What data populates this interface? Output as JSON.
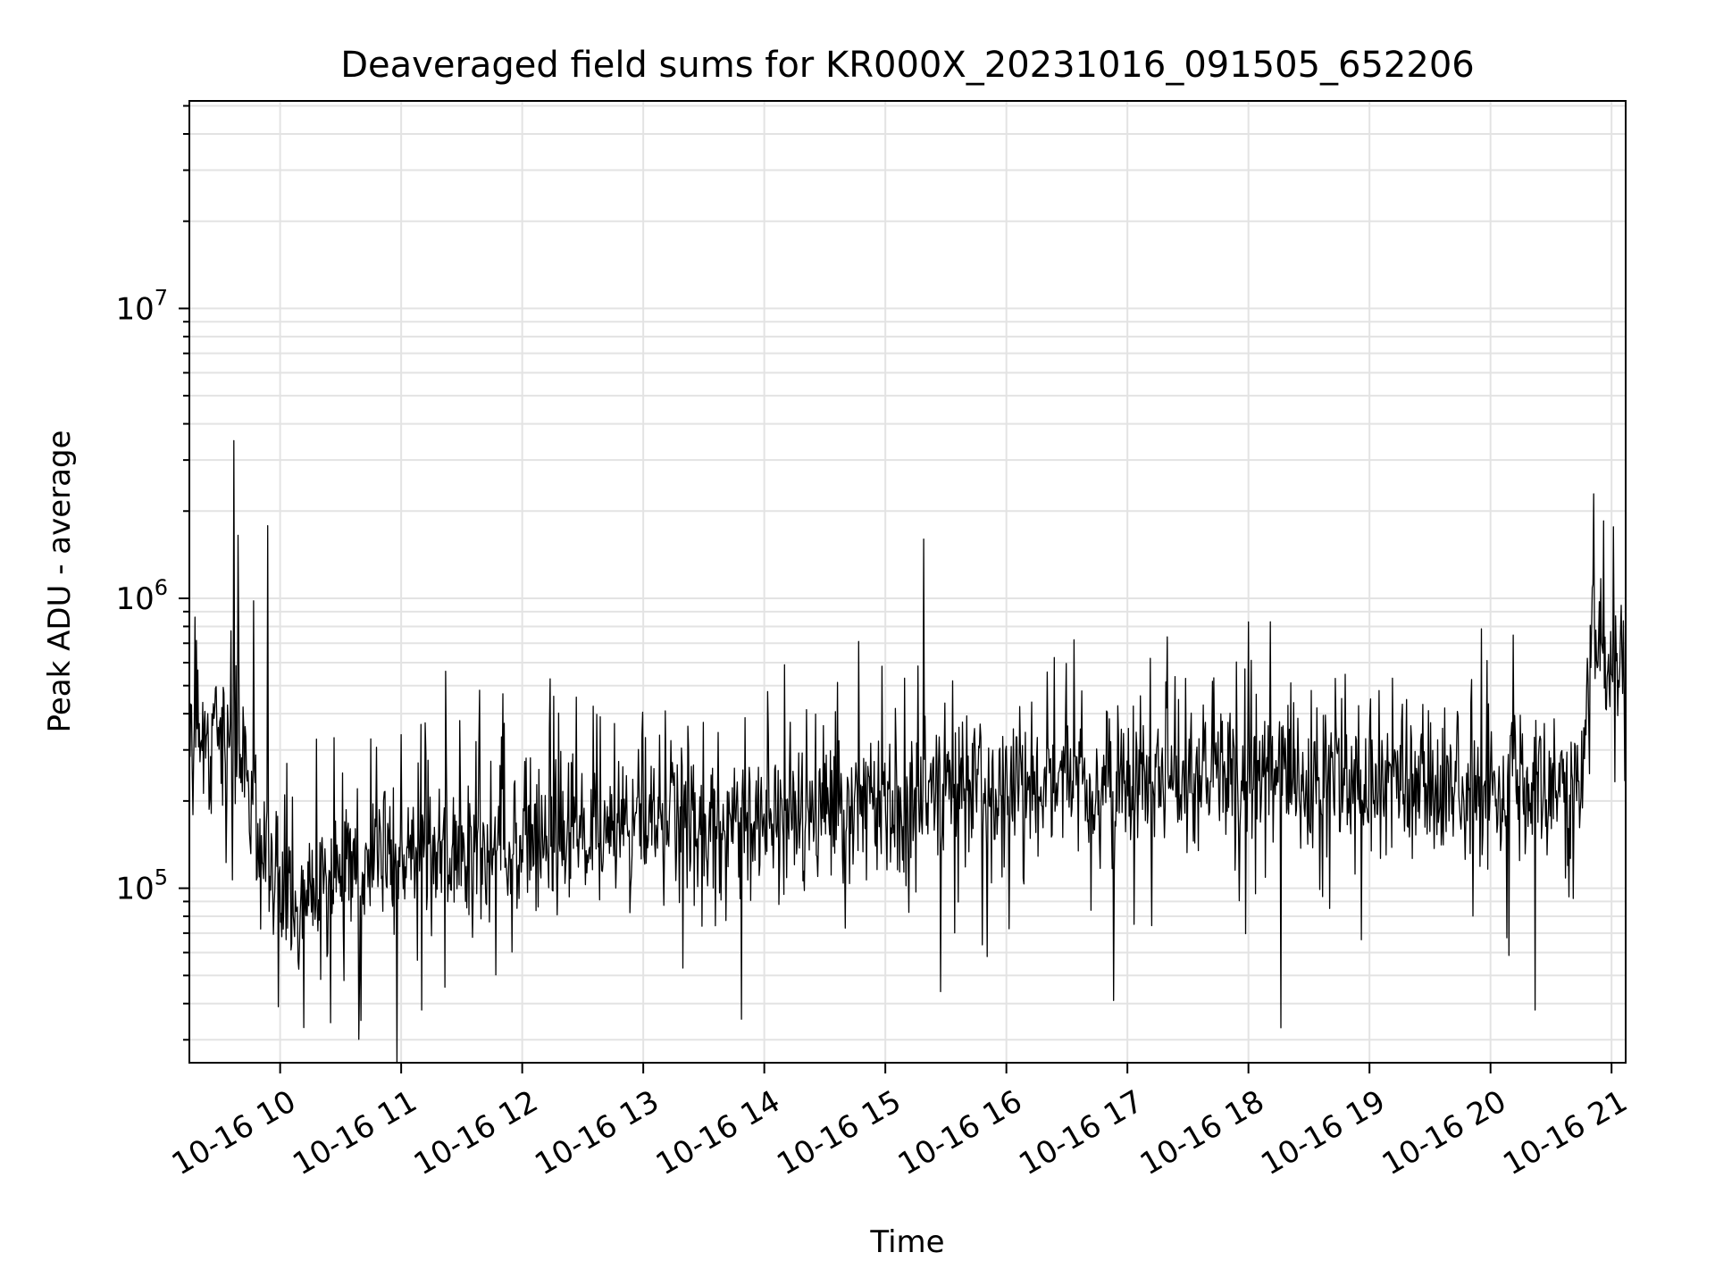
{
  "chart_data": {
    "type": "line",
    "title": "Deaveraged field sums for KR000X_20231016_091505_652206",
    "xlabel": "Time",
    "ylabel": "Peak ADU - average",
    "xscale": "time",
    "yscale": "log",
    "xlim": [
      "2023-10-16 09:15",
      "2023-10-16 21:07"
    ],
    "ylim": [
      25000,
      52000000
    ],
    "x_ticks": [
      {
        "value": "2023-10-16 10:00",
        "label": "10-16 10"
      },
      {
        "value": "2023-10-16 11:00",
        "label": "10-16 11"
      },
      {
        "value": "2023-10-16 12:00",
        "label": "10-16 12"
      },
      {
        "value": "2023-10-16 13:00",
        "label": "10-16 13"
      },
      {
        "value": "2023-10-16 14:00",
        "label": "10-16 14"
      },
      {
        "value": "2023-10-16 15:00",
        "label": "10-16 15"
      },
      {
        "value": "2023-10-16 16:00",
        "label": "10-16 16"
      },
      {
        "value": "2023-10-16 17:00",
        "label": "10-16 17"
      },
      {
        "value": "2023-10-16 18:00",
        "label": "10-16 18"
      },
      {
        "value": "2023-10-16 19:00",
        "label": "10-16 19"
      },
      {
        "value": "2023-10-16 20:00",
        "label": "10-16 20"
      },
      {
        "value": "2023-10-16 21:00",
        "label": "10-16 21"
      }
    ],
    "y_ticks": [
      {
        "value": 100000,
        "base": "10",
        "exp": "5"
      },
      {
        "value": 1000000,
        "base": "10",
        "exp": "6"
      },
      {
        "value": 10000000,
        "base": "10",
        "exp": "7"
      }
    ],
    "grid": true,
    "color": "#000000",
    "series": [
      {
        "trend": [
          [
            "2023-10-16 09:15",
            330000
          ],
          [
            "2023-10-16 09:30",
            330000
          ],
          [
            "2023-10-16 09:40",
            300000
          ],
          [
            "2023-10-16 09:48",
            180000
          ],
          [
            "2023-10-16 09:55",
            100000
          ],
          [
            "2023-10-16 10:05",
            95000
          ],
          [
            "2023-10-16 10:30",
            115000
          ],
          [
            "2023-10-16 11:00",
            125000
          ],
          [
            "2023-10-16 12:00",
            145000
          ],
          [
            "2023-10-16 13:00",
            160000
          ],
          [
            "2023-10-16 14:00",
            180000
          ],
          [
            "2023-10-16 15:00",
            200000
          ],
          [
            "2023-10-16 16:00",
            225000
          ],
          [
            "2023-10-16 17:00",
            230000
          ],
          [
            "2023-10-16 18:00",
            235000
          ],
          [
            "2023-10-16 19:00",
            230000
          ],
          [
            "2023-10-16 20:00",
            215000
          ],
          [
            "2023-10-16 20:45",
            210000
          ],
          [
            "2023-10-16 20:49",
            600000
          ],
          [
            "2023-10-16 21:07",
            620000
          ]
        ],
        "peaks": [
          [
            "2023-10-16 09:37",
            3500000
          ],
          [
            "2023-10-16 09:39",
            1650000
          ],
          [
            "2023-10-16 09:47",
            980000
          ],
          [
            "2023-10-16 09:54",
            1780000
          ],
          [
            "2023-10-16 11:22",
            560000
          ],
          [
            "2023-10-16 14:10",
            590000
          ],
          [
            "2023-10-16 15:19",
            1600000
          ],
          [
            "2023-10-16 18:11",
            830000
          ],
          [
            "2023-10-16 20:56",
            1850000
          ]
        ],
        "troughs": [
          [
            "2023-10-16 09:59",
            39000
          ],
          [
            "2023-10-16 10:40",
            35000
          ],
          [
            "2023-10-16 11:10",
            38000
          ],
          [
            "2023-10-16 16:53",
            41000
          ],
          [
            "2023-10-16 18:16",
            33000
          ],
          [
            "2023-10-16 20:22",
            38000
          ]
        ]
      }
    ]
  }
}
